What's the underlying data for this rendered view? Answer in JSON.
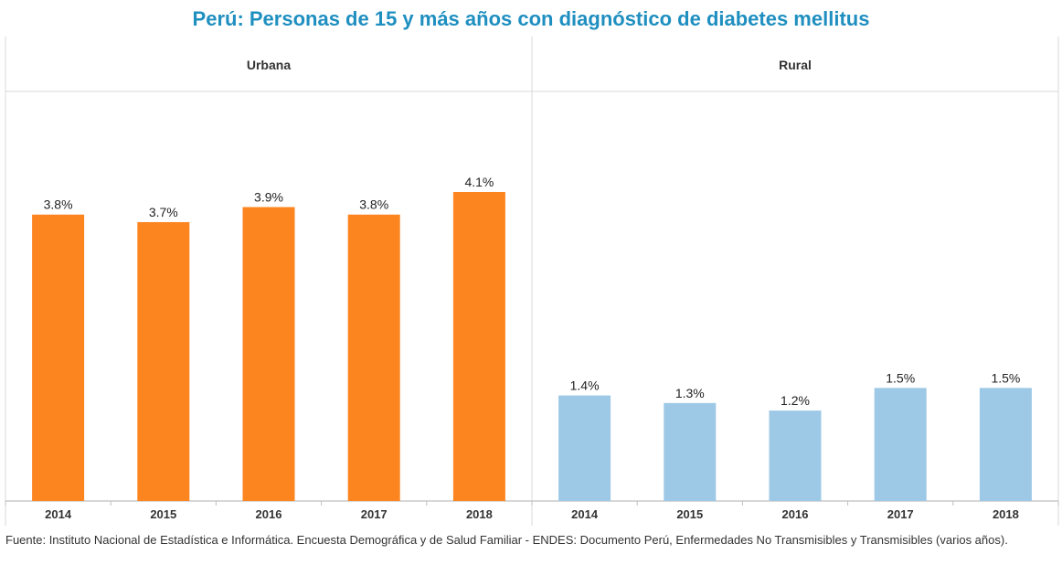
{
  "title": "Perú: Personas de 15 y más años con diagnóstico de diabetes mellitus",
  "source": "Fuente: Instituto Nacional de Estadística e Informática. Encuesta Demográfica y de Salud Familiar - ENDES: Documento Perú, Enfermedades No Transmisibles y Transmisibles (varios años).",
  "chart_data": [
    {
      "type": "bar",
      "panel": "Urbana",
      "categories": [
        "2014",
        "2015",
        "2016",
        "2017",
        "2018"
      ],
      "values": [
        3.8,
        3.7,
        3.9,
        3.8,
        4.1
      ],
      "labels": [
        "3.8%",
        "3.7%",
        "3.9%",
        "3.8%",
        "4.1%"
      ],
      "color": "#fd8520",
      "ylim": [
        0,
        5
      ]
    },
    {
      "type": "bar",
      "panel": "Rural",
      "categories": [
        "2014",
        "2015",
        "2016",
        "2017",
        "2018"
      ],
      "values": [
        1.4,
        1.3,
        1.2,
        1.5,
        1.5
      ],
      "labels": [
        "1.4%",
        "1.3%",
        "1.2%",
        "1.5%",
        "1.5%"
      ],
      "color": "#9dc8e6",
      "ylim": [
        0,
        5
      ]
    }
  ]
}
